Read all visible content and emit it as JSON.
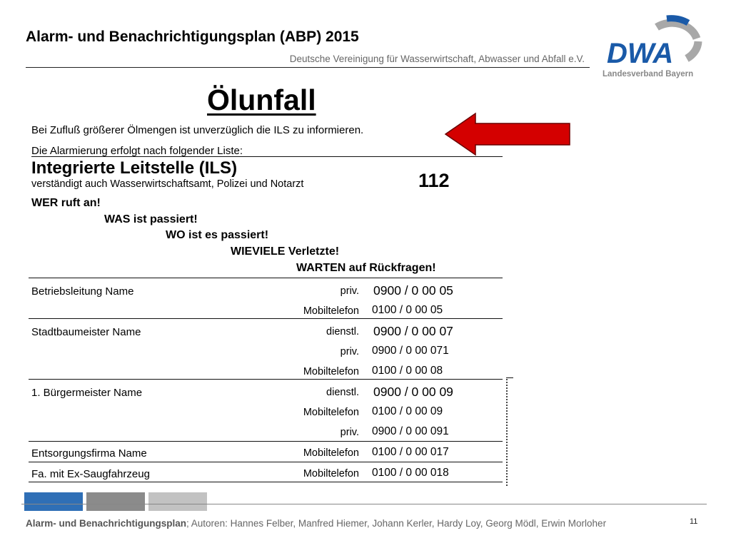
{
  "header": {
    "title": "Alarm- und Benachrichtigungsplan (ABP) 2015",
    "subtitle": "Deutsche Vereinigung für Wasserwirtschaft, Abwasser und Abfall e.V."
  },
  "logo": {
    "wordmark": "DWA",
    "caption": "Landesverband Bayern",
    "colors": {
      "blue": "#1a5aa8",
      "gray": "#a8a8a8"
    }
  },
  "document": {
    "title": "Ölunfall",
    "intro_line1": "Bei Zufluß größerer Ölmengen ist unverzüglich die ILS zu informieren.",
    "intro_line2": "Die Alarmierung erfolgt nach folgender Liste:",
    "ils": {
      "title": "Integrierte Leitstelle (ILS)",
      "description": "verständigt auch Wasserwirtschaftsamt, Polizei und Notarzt",
      "number": "112"
    },
    "protocol": [
      "WER ruft an!",
      "WAS ist passiert!",
      "WO ist es passiert!",
      "WIEVIELE Verletzte!",
      "WARTEN auf Rückfragen!"
    ],
    "contacts": [
      {
        "name": "Betriebsleitung Name",
        "entries": [
          {
            "type": "priv.",
            "number": "0900 / 0 00 05"
          },
          {
            "type": "Mobiltelefon",
            "number": "0100 / 0 00 05"
          }
        ]
      },
      {
        "name": "Stadtbaumeister Name",
        "entries": [
          {
            "type": "dienstl.",
            "number": "0900 / 0 00 07"
          },
          {
            "type": "priv.",
            "number": "0900 / 0 00 071"
          },
          {
            "type": "Mobiltelefon",
            "number": "0100 / 0 00 08"
          }
        ]
      },
      {
        "name": "1. Bürgermeister Name",
        "entries": [
          {
            "type": "dienstl.",
            "number": "0900 / 0 00 09"
          },
          {
            "type": "Mobiltelefon",
            "number": "0100 / 0 00 09"
          },
          {
            "type": "priv.",
            "number": "0900 / 0 00 091"
          }
        ]
      },
      {
        "name": "Entsorgungsfirma Name",
        "entries": [
          {
            "type": "Mobiltelefon",
            "number": "0100 / 0 00 017"
          }
        ]
      },
      {
        "name": "Fa. mit Ex-Saugfahrzeug",
        "entries": [
          {
            "type": "Mobiltelefon",
            "number": "0100 / 0 00 018"
          }
        ]
      }
    ],
    "arrow_color": "#d40000"
  },
  "footer": {
    "title": "Alarm- und Benachrichtigungsplan",
    "authors": "; Autoren: Hannes Felber, Manfred Hiemer, Johann Kerler, Hardy Loy, Georg Mödl, Erwin Morloher",
    "page_number": "11",
    "tab_colors": [
      "#2f6fb6",
      "#8b8b8b",
      "#c2c2c2"
    ]
  }
}
